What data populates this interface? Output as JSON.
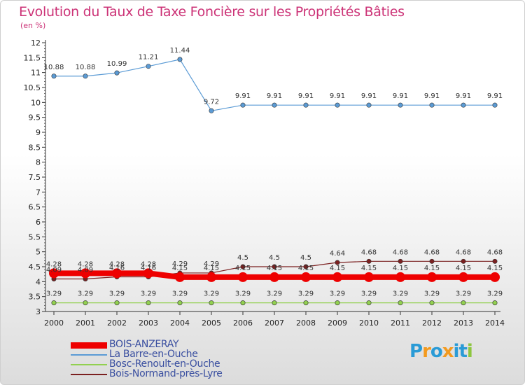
{
  "header": {
    "title": "Evolution du Taux de Taxe Foncière sur les Propriétés Bâties",
    "unit": "(en %)"
  },
  "logo": {
    "text": "Proxiti",
    "colors": [
      "#2a9bd6",
      "#f39a1e",
      "#2a9bd6",
      "#f39a1e",
      "#2a9bd6",
      "#2a9bd6",
      "#8dc63f"
    ]
  },
  "chart_data": {
    "type": "line",
    "title": "Evolution du Taux de Taxe Foncière sur les Propriétés Bâties",
    "ylabel": "(en %)",
    "xlabel": "",
    "ylim": [
      3,
      12
    ],
    "yticks": [
      3,
      3.5,
      4,
      4.5,
      5,
      5.5,
      6,
      6.5,
      7,
      7.5,
      8,
      8.5,
      9,
      9.5,
      10,
      10.5,
      11,
      11.5,
      12
    ],
    "x": [
      "2000",
      "2001",
      "2002",
      "2003",
      "2004",
      "2005",
      "2006",
      "2007",
      "2008",
      "2009",
      "2010",
      "2011",
      "2012",
      "2013",
      "2014"
    ],
    "grid": false,
    "legend_position": "bottom-left",
    "series": [
      {
        "name": "BOIS-ANZERAY",
        "color": "#ee0000",
        "values": [
          4.28,
          4.28,
          4.28,
          4.28,
          4.15,
          4.15,
          4.15,
          4.15,
          4.15,
          4.15,
          4.15,
          4.15,
          4.15,
          4.15,
          4.15
        ],
        "labels": [
          "4.28",
          "4.28",
          "4.28",
          "4.28",
          "4.15",
          "4.15",
          "4.15",
          "4.15",
          "4.15",
          "4.15",
          "4.15",
          "4.15",
          "4.15",
          "4.15",
          "4.15"
        ]
      },
      {
        "name": "La Barre-en-Ouche",
        "color": "#5b9bd5",
        "values": [
          10.88,
          10.88,
          10.99,
          11.21,
          11.44,
          9.72,
          9.91,
          9.91,
          9.91,
          9.91,
          9.91,
          9.91,
          9.91,
          9.91,
          9.91
        ],
        "labels": [
          "10.88",
          "10.88",
          "10.99",
          "11.21",
          "11.44",
          "9.72",
          "9.91",
          "9.91",
          "9.91",
          "9.91",
          "9.91",
          "9.91",
          "9.91",
          "9.91",
          "9.91"
        ]
      },
      {
        "name": "Bosc-Renoult-en-Ouche",
        "color": "#92d050",
        "values": [
          3.29,
          3.29,
          3.29,
          3.29,
          3.29,
          3.29,
          3.29,
          3.29,
          3.29,
          3.29,
          3.29,
          3.29,
          3.29,
          3.29,
          3.29
        ],
        "labels": [
          "3.29",
          "3.29",
          "3.29",
          "3.29",
          "3.29",
          "3.29",
          "3.29",
          "3.29",
          "3.29",
          "3.29",
          "3.29",
          "3.29",
          "3.29",
          "3.29",
          "3.29"
        ]
      },
      {
        "name": "Bois-Normand-près-Lyre",
        "color": "#7b2020",
        "values": [
          4.09,
          4.09,
          4.16,
          4.16,
          4.29,
          4.29,
          4.5,
          4.5,
          4.5,
          4.64,
          4.68,
          4.68,
          4.68,
          4.68,
          4.68
        ],
        "labels": [
          "4.09",
          "4.09",
          "4.16",
          "4.16",
          "4.29",
          "4.29",
          "4.5",
          "4.5",
          "4.5",
          "4.64",
          "4.68",
          "4.68",
          "4.68",
          "4.68",
          "4.68"
        ]
      }
    ]
  }
}
